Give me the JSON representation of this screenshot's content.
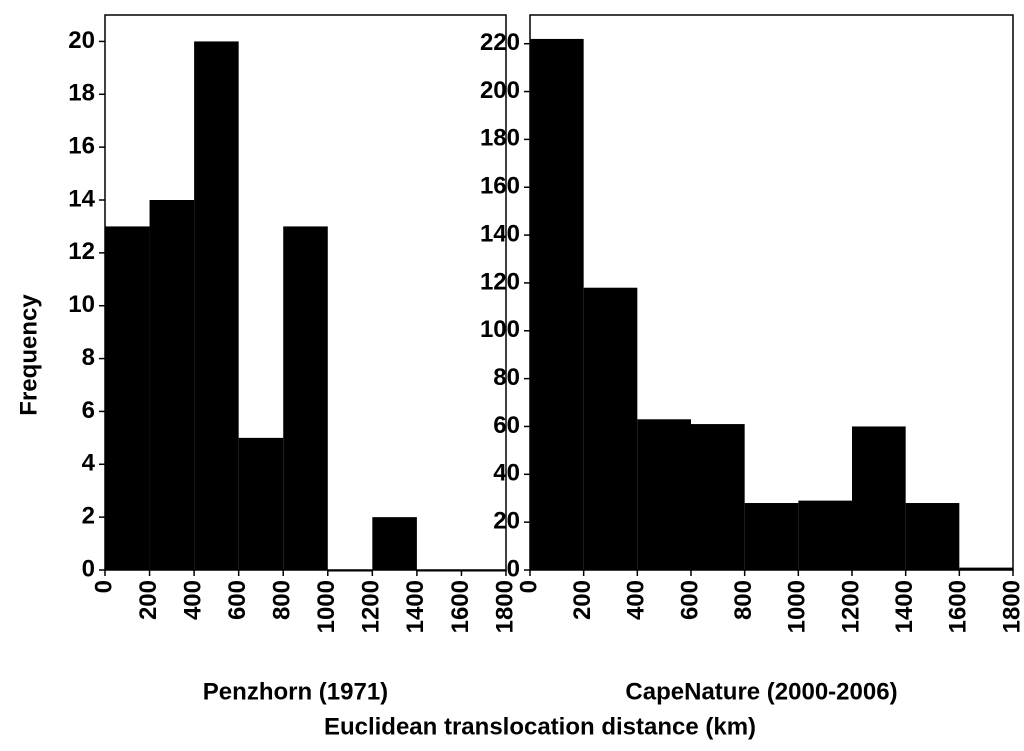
{
  "ylabel": "Frequency",
  "xlabel": "Euclidean translocation distance (km)",
  "chart_data": [
    {
      "type": "histogram",
      "title": "Penzhorn (1971)",
      "color": "#000000",
      "bins": [
        0,
        200,
        400,
        600,
        800,
        1000,
        1200,
        1400,
        1600,
        1800
      ],
      "counts": [
        13,
        14,
        20,
        5,
        13,
        0,
        2,
        0,
        0
      ],
      "xlim": [
        0,
        1800
      ],
      "xticks": [
        0,
        200,
        400,
        600,
        800,
        1000,
        1200,
        1400,
        1600,
        1800
      ],
      "ylim": [
        0,
        21
      ],
      "yticks": [
        0,
        2,
        4,
        6,
        8,
        10,
        12,
        14,
        16,
        18,
        20
      ]
    },
    {
      "type": "histogram",
      "title": "CapeNature (2000-2006)",
      "color": "#000000",
      "bins": [
        0,
        200,
        400,
        600,
        800,
        1000,
        1200,
        1400,
        1600,
        1800
      ],
      "counts": [
        222,
        118,
        63,
        61,
        28,
        29,
        60,
        28,
        1
      ],
      "xlim": [
        0,
        1800
      ],
      "xticks": [
        0,
        200,
        400,
        600,
        800,
        1000,
        1200,
        1400,
        1600,
        1800
      ],
      "ylim": [
        0,
        232
      ],
      "yticks": [
        0,
        20,
        40,
        60,
        80,
        100,
        120,
        140,
        160,
        180,
        200,
        220
      ]
    }
  ]
}
